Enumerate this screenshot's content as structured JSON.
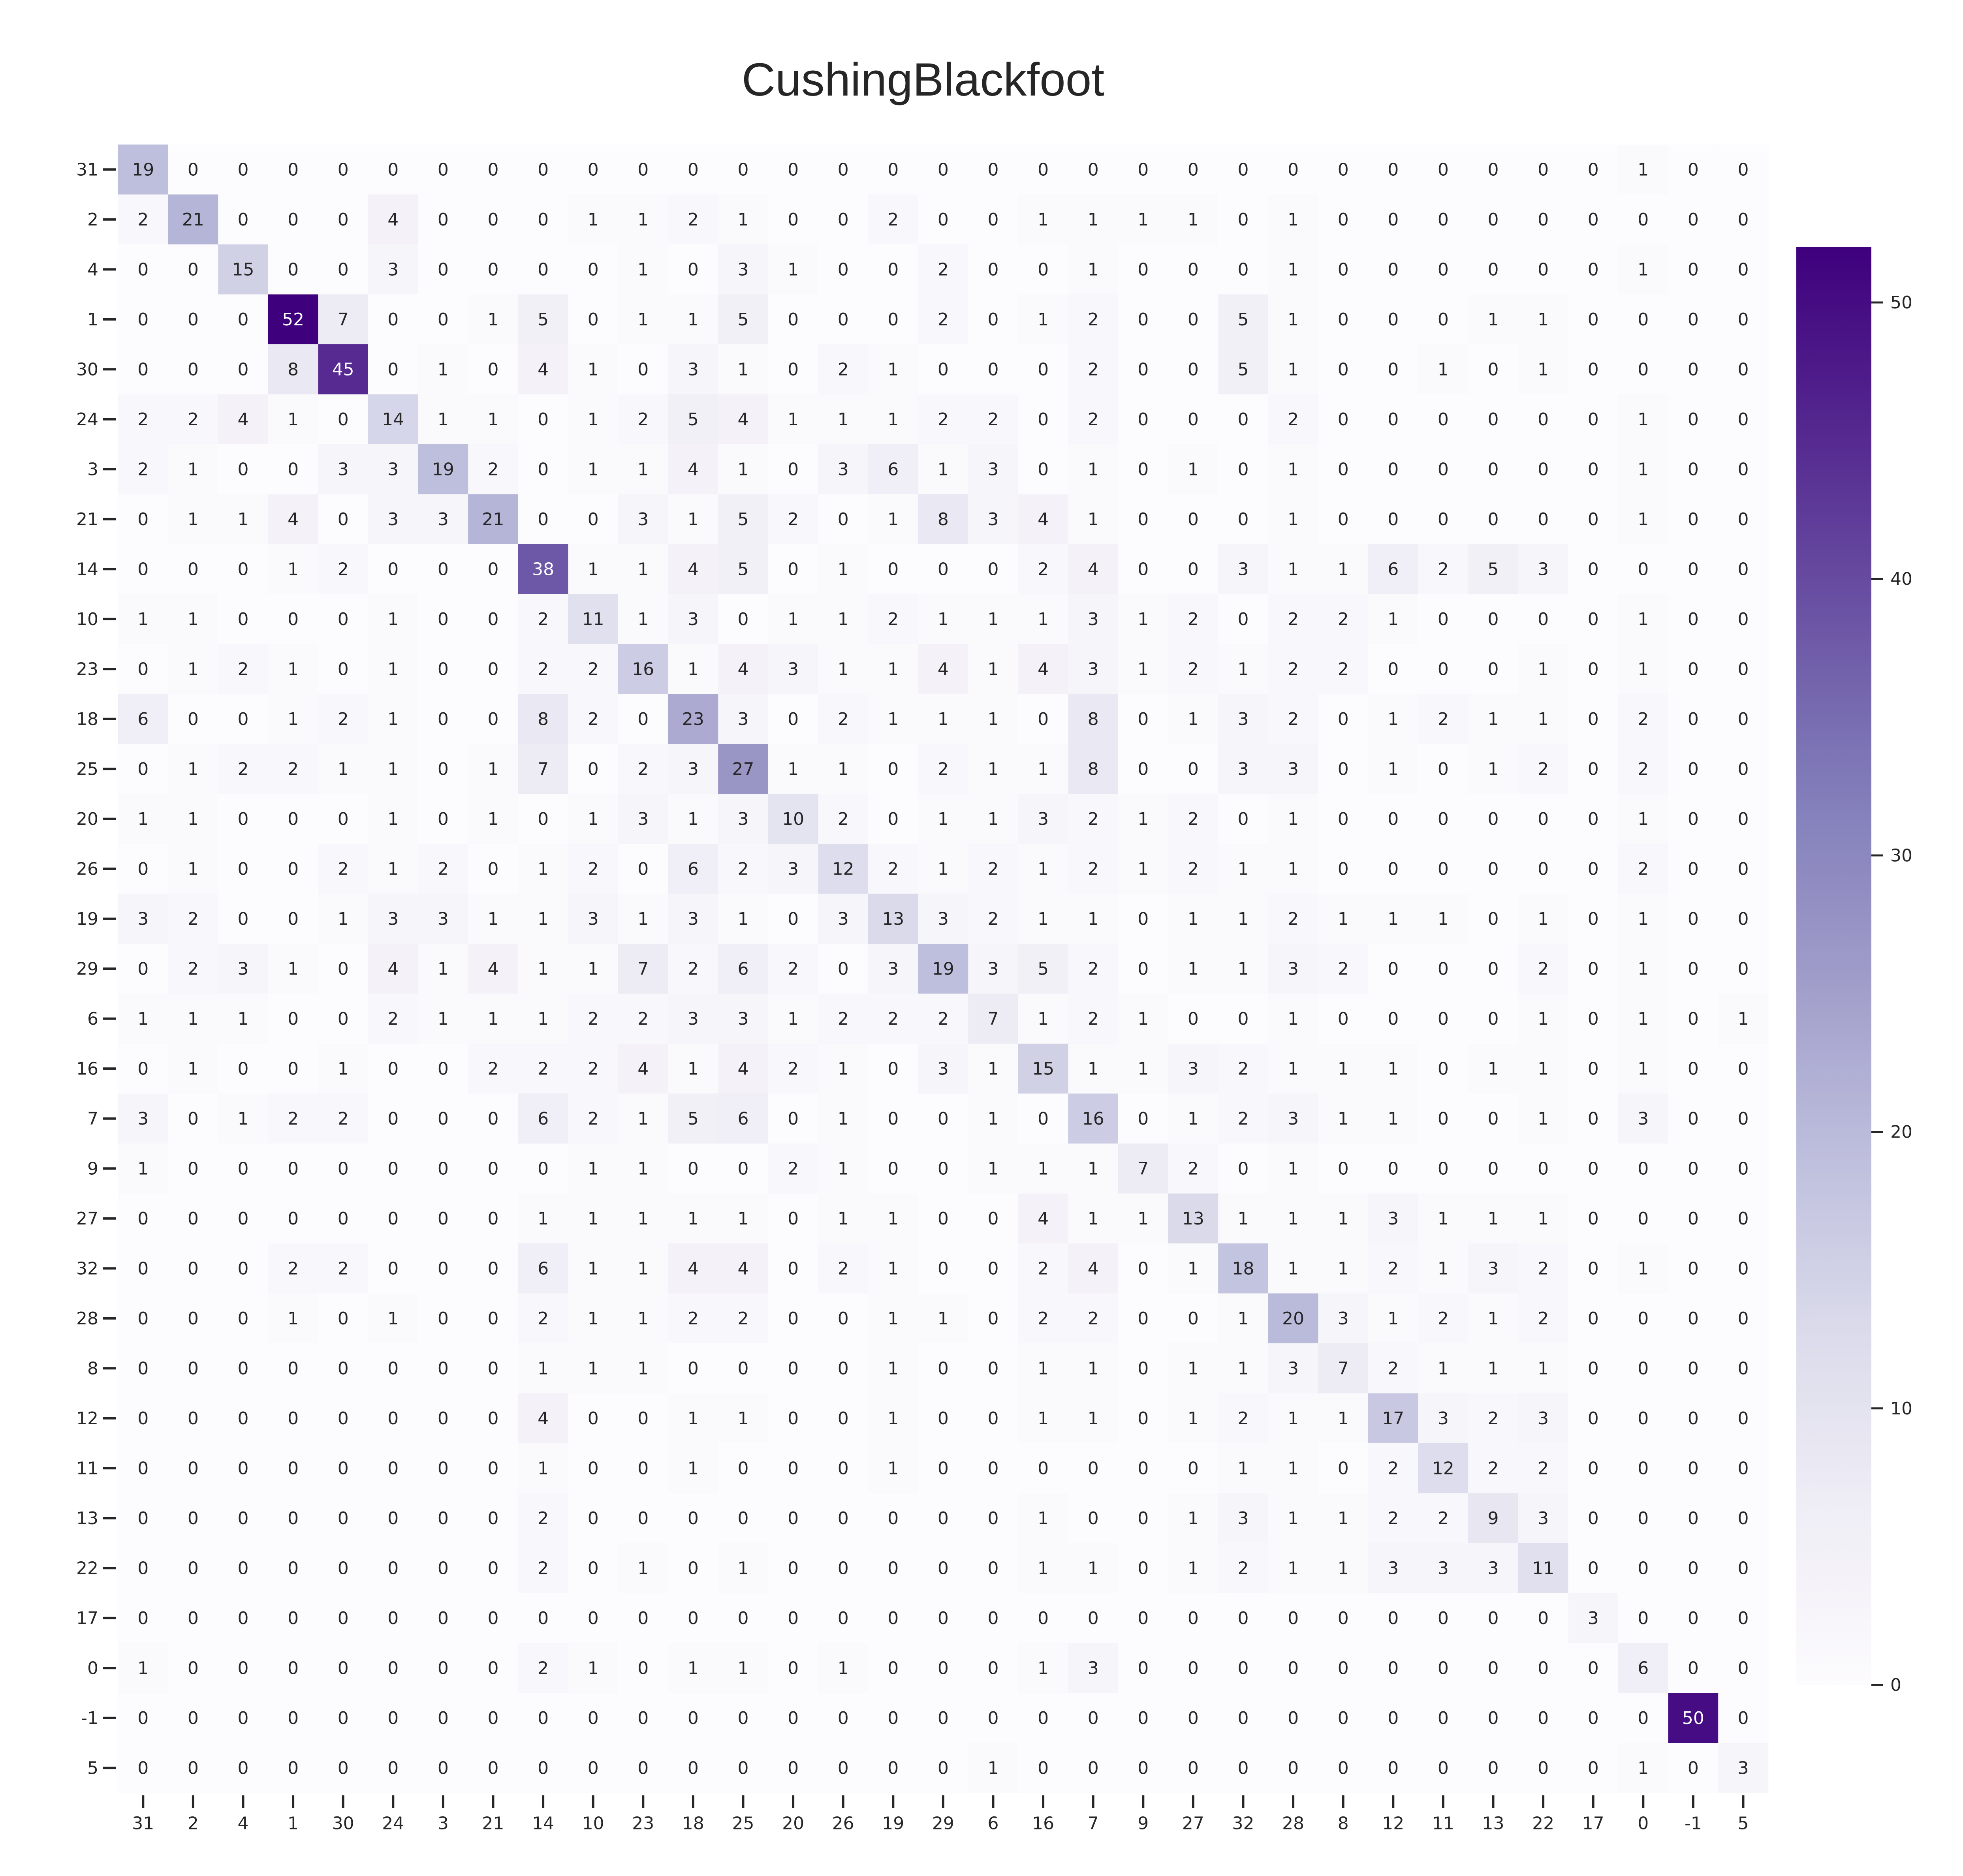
{
  "chart_data": {
    "type": "heatmap",
    "title": "CushingBlackfoot",
    "xlabel": "",
    "ylabel": "",
    "labels": [
      "31",
      "2",
      "4",
      "1",
      "30",
      "24",
      "3",
      "21",
      "14",
      "10",
      "23",
      "18",
      "25",
      "20",
      "26",
      "19",
      "29",
      "6",
      "16",
      "7",
      "9",
      "27",
      "32",
      "28",
      "8",
      "12",
      "11",
      "13",
      "22",
      "17",
      "0",
      "-1",
      "5"
    ],
    "matrix": [
      [
        19,
        0,
        0,
        0,
        0,
        0,
        0,
        0,
        0,
        0,
        0,
        0,
        0,
        0,
        0,
        0,
        0,
        0,
        0,
        0,
        0,
        0,
        0,
        0,
        0,
        0,
        0,
        0,
        0,
        0,
        1,
        0,
        0
      ],
      [
        2,
        21,
        0,
        0,
        0,
        4,
        0,
        0,
        0,
        1,
        1,
        2,
        1,
        0,
        0,
        2,
        0,
        0,
        1,
        1,
        1,
        1,
        0,
        1,
        0,
        0,
        0,
        0,
        0,
        0,
        0,
        0,
        0
      ],
      [
        0,
        0,
        15,
        0,
        0,
        3,
        0,
        0,
        0,
        0,
        1,
        0,
        3,
        1,
        0,
        0,
        2,
        0,
        0,
        1,
        0,
        0,
        0,
        1,
        0,
        0,
        0,
        0,
        0,
        0,
        1,
        0,
        0
      ],
      [
        0,
        0,
        0,
        52,
        7,
        0,
        0,
        1,
        5,
        0,
        1,
        1,
        5,
        0,
        0,
        0,
        2,
        0,
        1,
        2,
        0,
        0,
        5,
        1,
        0,
        0,
        0,
        1,
        1,
        0,
        0,
        0,
        0
      ],
      [
        0,
        0,
        0,
        8,
        45,
        0,
        1,
        0,
        4,
        1,
        0,
        3,
        1,
        0,
        2,
        1,
        0,
        0,
        0,
        2,
        0,
        0,
        5,
        1,
        0,
        0,
        1,
        0,
        1,
        0,
        0,
        0,
        0
      ],
      [
        2,
        2,
        4,
        1,
        0,
        14,
        1,
        1,
        0,
        1,
        2,
        5,
        4,
        1,
        1,
        1,
        2,
        2,
        0,
        2,
        0,
        0,
        0,
        2,
        0,
        0,
        0,
        0,
        0,
        0,
        1,
        0,
        0
      ],
      [
        2,
        1,
        0,
        0,
        3,
        3,
        19,
        2,
        0,
        1,
        1,
        4,
        1,
        0,
        3,
        6,
        1,
        3,
        0,
        1,
        0,
        1,
        0,
        1,
        0,
        0,
        0,
        0,
        0,
        0,
        1,
        0,
        0
      ],
      [
        0,
        1,
        1,
        4,
        0,
        3,
        3,
        21,
        0,
        0,
        3,
        1,
        5,
        2,
        0,
        1,
        8,
        3,
        4,
        1,
        0,
        0,
        0,
        1,
        0,
        0,
        0,
        0,
        0,
        0,
        1,
        0,
        0
      ],
      [
        0,
        0,
        0,
        1,
        2,
        0,
        0,
        0,
        38,
        1,
        1,
        4,
        5,
        0,
        1,
        0,
        0,
        0,
        2,
        4,
        0,
        0,
        3,
        1,
        1,
        6,
        2,
        5,
        3,
        0,
        0,
        0,
        0
      ],
      [
        1,
        1,
        0,
        0,
        0,
        1,
        0,
        0,
        2,
        11,
        1,
        3,
        0,
        1,
        1,
        2,
        1,
        1,
        1,
        3,
        1,
        2,
        0,
        2,
        2,
        1,
        0,
        0,
        0,
        0,
        1,
        0,
        0
      ],
      [
        0,
        1,
        2,
        1,
        0,
        1,
        0,
        0,
        2,
        2,
        16,
        1,
        4,
        3,
        1,
        1,
        4,
        1,
        4,
        3,
        1,
        2,
        1,
        2,
        2,
        0,
        0,
        0,
        1,
        0,
        1,
        0,
        0
      ],
      [
        6,
        0,
        0,
        1,
        2,
        1,
        0,
        0,
        8,
        2,
        0,
        23,
        3,
        0,
        2,
        1,
        1,
        1,
        0,
        8,
        0,
        1,
        3,
        2,
        0,
        1,
        2,
        1,
        1,
        0,
        2,
        0,
        0
      ],
      [
        0,
        1,
        2,
        2,
        1,
        1,
        0,
        1,
        7,
        0,
        2,
        3,
        27,
        1,
        1,
        0,
        2,
        1,
        1,
        8,
        0,
        0,
        3,
        3,
        0,
        1,
        0,
        1,
        2,
        0,
        2,
        0,
        0
      ],
      [
        1,
        1,
        0,
        0,
        0,
        1,
        0,
        1,
        0,
        1,
        3,
        1,
        3,
        10,
        2,
        0,
        1,
        1,
        3,
        2,
        1,
        2,
        0,
        1,
        0,
        0,
        0,
        0,
        0,
        0,
        1,
        0,
        0
      ],
      [
        0,
        1,
        0,
        0,
        2,
        1,
        2,
        0,
        1,
        2,
        0,
        6,
        2,
        3,
        12,
        2,
        1,
        2,
        1,
        2,
        1,
        2,
        1,
        1,
        0,
        0,
        0,
        0,
        0,
        0,
        2,
        0,
        0
      ],
      [
        3,
        2,
        0,
        0,
        1,
        3,
        3,
        1,
        1,
        3,
        1,
        3,
        1,
        0,
        3,
        13,
        3,
        2,
        1,
        1,
        0,
        1,
        1,
        2,
        1,
        1,
        1,
        0,
        1,
        0,
        1,
        0,
        0
      ],
      [
        0,
        2,
        3,
        1,
        0,
        4,
        1,
        4,
        1,
        1,
        7,
        2,
        6,
        2,
        0,
        3,
        19,
        3,
        5,
        2,
        0,
        1,
        1,
        3,
        2,
        0,
        0,
        0,
        2,
        0,
        1,
        0,
        0
      ],
      [
        1,
        1,
        1,
        0,
        0,
        2,
        1,
        1,
        1,
        2,
        2,
        3,
        3,
        1,
        2,
        2,
        2,
        7,
        1,
        2,
        1,
        0,
        0,
        1,
        0,
        0,
        0,
        0,
        1,
        0,
        1,
        0,
        1
      ],
      [
        0,
        1,
        0,
        0,
        1,
        0,
        0,
        2,
        2,
        2,
        4,
        1,
        4,
        2,
        1,
        0,
        3,
        1,
        15,
        1,
        1,
        3,
        2,
        1,
        1,
        1,
        0,
        1,
        1,
        0,
        1,
        0,
        0
      ],
      [
        3,
        0,
        1,
        2,
        2,
        0,
        0,
        0,
        6,
        2,
        1,
        5,
        6,
        0,
        1,
        0,
        0,
        1,
        0,
        16,
        0,
        1,
        2,
        3,
        1,
        1,
        0,
        0,
        1,
        0,
        3,
        0,
        0
      ],
      [
        1,
        0,
        0,
        0,
        0,
        0,
        0,
        0,
        0,
        1,
        1,
        0,
        0,
        2,
        1,
        0,
        0,
        1,
        1,
        1,
        7,
        2,
        0,
        1,
        0,
        0,
        0,
        0,
        0,
        0,
        0,
        0,
        0
      ],
      [
        0,
        0,
        0,
        0,
        0,
        0,
        0,
        0,
        1,
        1,
        1,
        1,
        1,
        0,
        1,
        1,
        0,
        0,
        4,
        1,
        1,
        13,
        1,
        1,
        1,
        3,
        1,
        1,
        1,
        0,
        0,
        0,
        0
      ],
      [
        0,
        0,
        0,
        2,
        2,
        0,
        0,
        0,
        6,
        1,
        1,
        4,
        4,
        0,
        2,
        1,
        0,
        0,
        2,
        4,
        0,
        1,
        18,
        1,
        1,
        2,
        1,
        3,
        2,
        0,
        1,
        0,
        0
      ],
      [
        0,
        0,
        0,
        1,
        0,
        1,
        0,
        0,
        2,
        1,
        1,
        2,
        2,
        0,
        0,
        1,
        1,
        0,
        2,
        2,
        0,
        0,
        1,
        20,
        3,
        1,
        2,
        1,
        2,
        0,
        0,
        0,
        0
      ],
      [
        0,
        0,
        0,
        0,
        0,
        0,
        0,
        0,
        1,
        1,
        1,
        0,
        0,
        0,
        0,
        1,
        0,
        0,
        1,
        1,
        0,
        1,
        1,
        3,
        7,
        2,
        1,
        1,
        1,
        0,
        0,
        0,
        0
      ],
      [
        0,
        0,
        0,
        0,
        0,
        0,
        0,
        0,
        4,
        0,
        0,
        1,
        1,
        0,
        0,
        1,
        0,
        0,
        1,
        1,
        0,
        1,
        2,
        1,
        1,
        17,
        3,
        2,
        3,
        0,
        0,
        0,
        0
      ],
      [
        0,
        0,
        0,
        0,
        0,
        0,
        0,
        0,
        1,
        0,
        0,
        1,
        0,
        0,
        0,
        1,
        0,
        0,
        0,
        0,
        0,
        0,
        1,
        1,
        0,
        2,
        12,
        2,
        2,
        0,
        0,
        0,
        0
      ],
      [
        0,
        0,
        0,
        0,
        0,
        0,
        0,
        0,
        2,
        0,
        0,
        0,
        0,
        0,
        0,
        0,
        0,
        0,
        1,
        0,
        0,
        1,
        3,
        1,
        1,
        2,
        2,
        9,
        3,
        0,
        0,
        0,
        0
      ],
      [
        0,
        0,
        0,
        0,
        0,
        0,
        0,
        0,
        2,
        0,
        1,
        0,
        1,
        0,
        0,
        0,
        0,
        0,
        1,
        1,
        0,
        1,
        2,
        1,
        1,
        3,
        3,
        3,
        11,
        0,
        0,
        0,
        0
      ],
      [
        0,
        0,
        0,
        0,
        0,
        0,
        0,
        0,
        0,
        0,
        0,
        0,
        0,
        0,
        0,
        0,
        0,
        0,
        0,
        0,
        0,
        0,
        0,
        0,
        0,
        0,
        0,
        0,
        0,
        3,
        0,
        0,
        0
      ],
      [
        1,
        0,
        0,
        0,
        0,
        0,
        0,
        0,
        2,
        1,
        0,
        1,
        1,
        0,
        1,
        0,
        0,
        0,
        1,
        3,
        0,
        0,
        0,
        0,
        0,
        0,
        0,
        0,
        0,
        0,
        6,
        0,
        0
      ],
      [
        0,
        0,
        0,
        0,
        0,
        0,
        0,
        0,
        0,
        0,
        0,
        0,
        0,
        0,
        0,
        0,
        0,
        0,
        0,
        0,
        0,
        0,
        0,
        0,
        0,
        0,
        0,
        0,
        0,
        0,
        0,
        50,
        0
      ],
      [
        0,
        0,
        0,
        0,
        0,
        0,
        0,
        0,
        0,
        0,
        0,
        0,
        0,
        0,
        0,
        0,
        0,
        1,
        0,
        0,
        0,
        0,
        0,
        0,
        0,
        0,
        0,
        0,
        0,
        0,
        1,
        0,
        3
      ]
    ],
    "vmin": 0,
    "vmax": 52,
    "colormap": "Purples",
    "colorbar_ticks": [
      0,
      10,
      20,
      30,
      40,
      50
    ],
    "colorbar_placement": "right",
    "grid": false
  }
}
